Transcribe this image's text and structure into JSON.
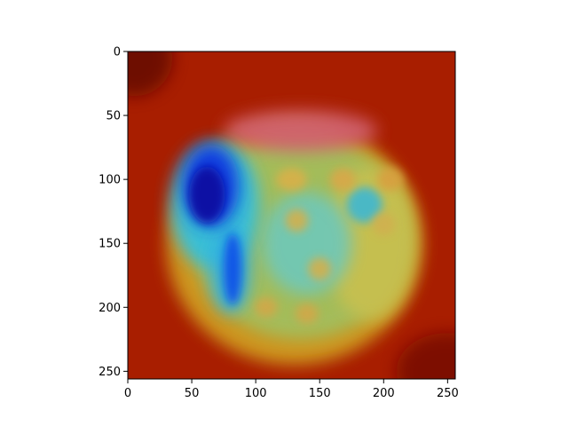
{
  "chart_data": {
    "type": "heatmap",
    "title": "",
    "xlabel": "",
    "ylabel": "",
    "xlim": [
      0,
      256
    ],
    "ylim": [
      256,
      0
    ],
    "y_axis_inverted": true,
    "grid": false,
    "legend": "none",
    "colormap": "jet",
    "x_ticks": [
      {
        "value": 0,
        "label": "0"
      },
      {
        "value": 50,
        "label": "50"
      },
      {
        "value": 100,
        "label": "100"
      },
      {
        "value": 150,
        "label": "150"
      },
      {
        "value": 200,
        "label": "200"
      },
      {
        "value": 250,
        "label": "250"
      }
    ],
    "y_ticks": [
      {
        "value": 0,
        "label": "0"
      },
      {
        "value": 50,
        "label": "50"
      },
      {
        "value": 100,
        "label": "100"
      },
      {
        "value": 150,
        "label": "150"
      },
      {
        "value": 200,
        "label": "200"
      },
      {
        "value": 250,
        "label": "250"
      }
    ],
    "background_color": "#a81e00",
    "regions": [
      {
        "name": "dark-edge-top-left",
        "cx": 5,
        "cy": 5,
        "rx": 30,
        "ry": 30,
        "color": "#6a0a00"
      },
      {
        "name": "dark-edge-bottom-right",
        "cx": 250,
        "cy": 250,
        "rx": 40,
        "ry": 30,
        "color": "#7a0c00"
      },
      {
        "name": "object-outer-glow",
        "cx": 130,
        "cy": 150,
        "rx": 100,
        "ry": 95,
        "color": "#d0a020"
      },
      {
        "name": "object-body",
        "cx": 135,
        "cy": 145,
        "rx": 85,
        "ry": 80,
        "color": "#a0c060"
      },
      {
        "name": "top-pink-band",
        "cx": 135,
        "cy": 62,
        "rx": 60,
        "ry": 16,
        "color": "#d06070"
      },
      {
        "name": "right-yellow-area",
        "cx": 190,
        "cy": 150,
        "rx": 35,
        "ry": 60,
        "color": "#c8c050"
      },
      {
        "name": "center-cyan-area",
        "cx": 140,
        "cy": 150,
        "rx": 35,
        "ry": 40,
        "color": "#70c8b8"
      },
      {
        "name": "cyan-spot-right",
        "cx": 185,
        "cy": 120,
        "rx": 14,
        "ry": 14,
        "color": "#40b8d0"
      },
      {
        "name": "left-cyan-halo",
        "cx": 68,
        "cy": 120,
        "rx": 35,
        "ry": 50,
        "color": "#30c0e0"
      },
      {
        "name": "arm-cyan",
        "cx": 80,
        "cy": 170,
        "rx": 16,
        "ry": 35,
        "color": "#30b0e0"
      },
      {
        "name": "blue-core",
        "cx": 65,
        "cy": 105,
        "rx": 22,
        "ry": 32,
        "color": "#1030e0"
      },
      {
        "name": "dark-blue-core",
        "cx": 62,
        "cy": 112,
        "rx": 14,
        "ry": 22,
        "color": "#0810a0"
      },
      {
        "name": "arm-blue",
        "cx": 82,
        "cy": 170,
        "rx": 7,
        "ry": 28,
        "color": "#1050e8"
      },
      {
        "name": "yellow-spot-1",
        "cx": 128,
        "cy": 100,
        "rx": 12,
        "ry": 9,
        "color": "#d8b048"
      },
      {
        "name": "yellow-spot-2",
        "cx": 168,
        "cy": 100,
        "rx": 10,
        "ry": 9,
        "color": "#d8a848"
      },
      {
        "name": "yellow-spot-3",
        "cx": 205,
        "cy": 100,
        "rx": 10,
        "ry": 9,
        "color": "#d8a040"
      },
      {
        "name": "yellow-spot-4",
        "cx": 132,
        "cy": 132,
        "rx": 9,
        "ry": 9,
        "color": "#d0b050"
      },
      {
        "name": "yellow-spot-5",
        "cx": 150,
        "cy": 170,
        "rx": 9,
        "ry": 9,
        "color": "#d0b050"
      },
      {
        "name": "yellow-spot-6",
        "cx": 200,
        "cy": 135,
        "rx": 9,
        "ry": 9,
        "color": "#d0b050"
      },
      {
        "name": "yellow-spot-7",
        "cx": 108,
        "cy": 200,
        "rx": 9,
        "ry": 8,
        "color": "#d0a848"
      },
      {
        "name": "yellow-spot-8",
        "cx": 140,
        "cy": 205,
        "rx": 9,
        "ry": 8,
        "color": "#d0a848"
      }
    ]
  }
}
